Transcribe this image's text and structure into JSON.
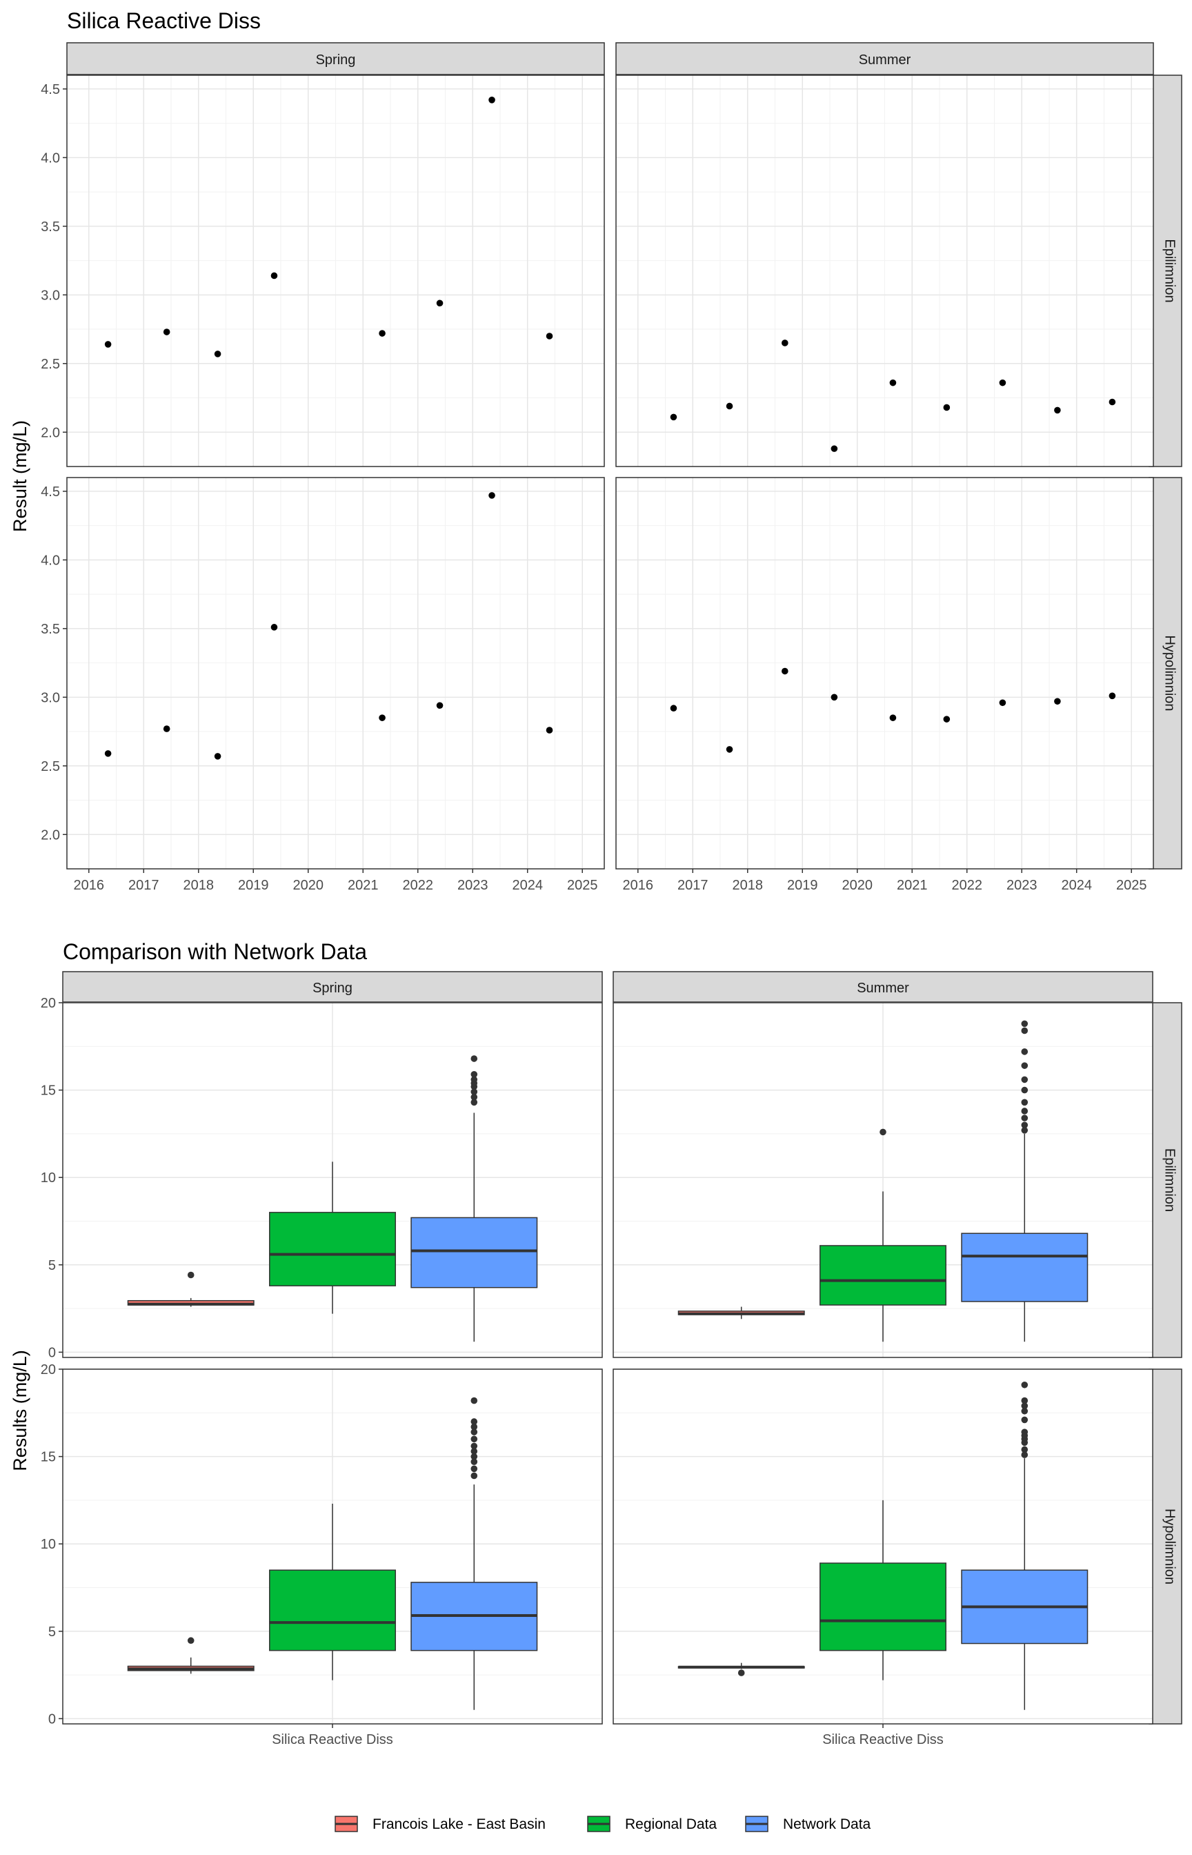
{
  "chart_data": [
    {
      "type": "scatter",
      "title": "Silica Reactive Diss",
      "ylabel": "Result (mg/L)",
      "xlabel": "",
      "columns": [
        "Spring",
        "Summer"
      ],
      "rows": [
        "Epilimnion",
        "Hypolimnion"
      ],
      "xlim": [
        2015.6,
        2025.4
      ],
      "ylim": [
        1.75,
        4.6
      ],
      "x_ticks": [
        "2016",
        "2017",
        "2018",
        "2019",
        "2020",
        "2021",
        "2022",
        "2023",
        "2024",
        "2025"
      ],
      "y_ticks": [
        "2.0",
        "2.5",
        "3.0",
        "3.5",
        "4.0",
        "4.5"
      ],
      "grid": true,
      "panels": [
        {
          "column": "Spring",
          "row": "Epilimnion",
          "x": [
            2016.35,
            2017.42,
            2018.35,
            2019.38,
            2021.35,
            2022.4,
            2023.35,
            2024.4
          ],
          "y": [
            2.64,
            2.73,
            2.57,
            3.14,
            2.72,
            2.94,
            4.42,
            2.7
          ]
        },
        {
          "column": "Summer",
          "row": "Epilimnion",
          "x": [
            2016.65,
            2017.67,
            2018.68,
            2019.58,
            2020.65,
            2021.63,
            2022.65,
            2023.65,
            2024.65
          ],
          "y": [
            2.11,
            2.19,
            2.65,
            1.88,
            2.36,
            2.18,
            2.36,
            2.16,
            2.22
          ]
        },
        {
          "column": "Spring",
          "row": "Hypolimnion",
          "x": [
            2016.35,
            2017.42,
            2018.35,
            2019.38,
            2021.35,
            2022.4,
            2023.35,
            2024.4
          ],
          "y": [
            2.59,
            2.77,
            2.57,
            3.51,
            2.85,
            2.94,
            4.47,
            2.76
          ]
        },
        {
          "column": "Summer",
          "row": "Hypolimnion",
          "x": [
            2016.65,
            2017.67,
            2018.68,
            2019.58,
            2020.65,
            2021.63,
            2022.65,
            2023.65,
            2024.65
          ],
          "y": [
            2.92,
            2.62,
            3.19,
            3.0,
            2.85,
            2.84,
            2.96,
            2.97,
            3.01
          ]
        }
      ]
    },
    {
      "type": "box",
      "title": "Comparison with Network Data",
      "ylabel": "Results (mg/L)",
      "category": "Silica Reactive Diss",
      "columns": [
        "Spring",
        "Summer"
      ],
      "rows": [
        "Epilimnion",
        "Hypolimnion"
      ],
      "ylim": [
        -0.3,
        20.0
      ],
      "y_ticks": [
        "0",
        "5",
        "10",
        "15",
        "20"
      ],
      "grid": true,
      "legend": {
        "position": "bottom",
        "entries": [
          {
            "name": "Francois Lake - East Basin",
            "color": "#F8766D"
          },
          {
            "name": "Regional Data",
            "color": "#00BA38"
          },
          {
            "name": "Network Data",
            "color": "#619CFF"
          }
        ]
      },
      "panels": [
        {
          "column": "Spring",
          "row": "Epilimnion",
          "groups": [
            {
              "series": "Francois Lake - East Basin",
              "min": 2.6,
              "q1": 2.7,
              "median": 2.75,
              "q3": 2.95,
              "max": 3.1,
              "outliers": [
                4.42
              ]
            },
            {
              "series": "Regional Data",
              "min": 2.2,
              "q1": 3.8,
              "median": 5.6,
              "q3": 8.0,
              "max": 10.9,
              "outliers": []
            },
            {
              "series": "Network Data",
              "min": 0.6,
              "q1": 3.7,
              "median": 5.8,
              "q3": 7.7,
              "max": 13.7,
              "outliers": [
                14.3,
                14.6,
                14.9,
                15.2,
                15.4,
                15.6,
                15.9,
                16.8
              ]
            }
          ]
        },
        {
          "column": "Summer",
          "row": "Epilimnion",
          "groups": [
            {
              "series": "Francois Lake - East Basin",
              "min": 1.9,
              "q1": 2.15,
              "median": 2.2,
              "q3": 2.35,
              "max": 2.6,
              "outliers": []
            },
            {
              "series": "Regional Data",
              "min": 0.6,
              "q1": 2.7,
              "median": 4.1,
              "q3": 6.1,
              "max": 9.2,
              "outliers": [
                12.6
              ]
            },
            {
              "series": "Network Data",
              "min": 0.6,
              "q1": 2.9,
              "median": 5.5,
              "q3": 6.8,
              "max": 12.5,
              "outliers": [
                12.7,
                13.0,
                13.4,
                13.8,
                14.3,
                15.0,
                15.6,
                16.4,
                17.2,
                18.4,
                18.8
              ]
            }
          ]
        },
        {
          "column": "Spring",
          "row": "Hypolimnion",
          "groups": [
            {
              "series": "Francois Lake - East Basin",
              "min": 2.57,
              "q1": 2.75,
              "median": 2.85,
              "q3": 3.0,
              "max": 3.5,
              "outliers": [
                4.47
              ]
            },
            {
              "series": "Regional Data",
              "min": 2.2,
              "q1": 3.9,
              "median": 5.5,
              "q3": 8.5,
              "max": 12.3,
              "outliers": []
            },
            {
              "series": "Network Data",
              "min": 0.5,
              "q1": 3.9,
              "median": 5.9,
              "q3": 7.8,
              "max": 13.4,
              "outliers": [
                13.9,
                14.3,
                14.7,
                15.0,
                15.3,
                15.6,
                16.0,
                16.4,
                16.7,
                17.0,
                18.2
              ]
            }
          ]
        },
        {
          "column": "Summer",
          "row": "Hypolimnion",
          "groups": [
            {
              "series": "Francois Lake - East Basin",
              "min": 2.84,
              "q1": 2.9,
              "median": 2.95,
              "q3": 2.98,
              "max": 3.19,
              "outliers": [
                2.62
              ]
            },
            {
              "series": "Regional Data",
              "min": 2.2,
              "q1": 3.9,
              "median": 5.6,
              "q3": 8.9,
              "max": 12.5,
              "outliers": []
            },
            {
              "series": "Network Data",
              "min": 0.5,
              "q1": 4.3,
              "median": 6.4,
              "q3": 8.5,
              "max": 14.9,
              "outliers": [
                15.1,
                15.4,
                15.8,
                16.0,
                16.2,
                16.4,
                17.1,
                17.6,
                17.9,
                18.2,
                19.1
              ]
            }
          ]
        }
      ]
    }
  ]
}
